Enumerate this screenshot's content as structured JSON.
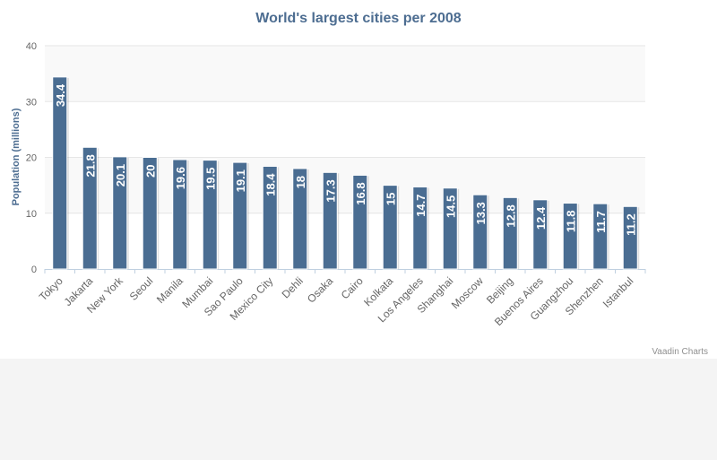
{
  "chart_data": {
    "type": "bar",
    "title": "World's largest cities per 2008",
    "ylabel": "Population (millions)",
    "xlabel": "",
    "ylim": [
      0,
      40
    ],
    "yticks": [
      0,
      10,
      20,
      30,
      40
    ],
    "grid": true,
    "legend": "none",
    "categories": [
      "Tokyo",
      "Jakarta",
      "New York",
      "Seoul",
      "Manila",
      "Mumbai",
      "Sao Paulo",
      "Mexico City",
      "Dehli",
      "Osaka",
      "Cairo",
      "Kolkata",
      "Los Angeles",
      "Shanghai",
      "Moscow",
      "Beijing",
      "Buenos Aires",
      "Guangzhou",
      "Shenzhen",
      "Istanbul"
    ],
    "values": [
      34.4,
      21.8,
      20.1,
      20,
      19.6,
      19.5,
      19.1,
      18.4,
      18,
      17.3,
      16.8,
      15,
      14.7,
      14.5,
      13.3,
      12.8,
      12.4,
      11.8,
      11.7,
      11.2
    ],
    "data_labels": [
      "34.4",
      "21.8",
      "20.1",
      "20",
      "19.6",
      "19.5",
      "19.1",
      "18.4",
      "18",
      "17.3",
      "16.8",
      "15",
      "14.7",
      "14.5",
      "13.3",
      "12.8",
      "12.4",
      "11.8",
      "11.7",
      "11.2"
    ],
    "colors": {
      "bar": "#4a6d92",
      "title": "#4d6d91",
      "band": "#f9f9f9",
      "grid": "#e6e6e6"
    }
  },
  "credits": "Vaadin Charts"
}
